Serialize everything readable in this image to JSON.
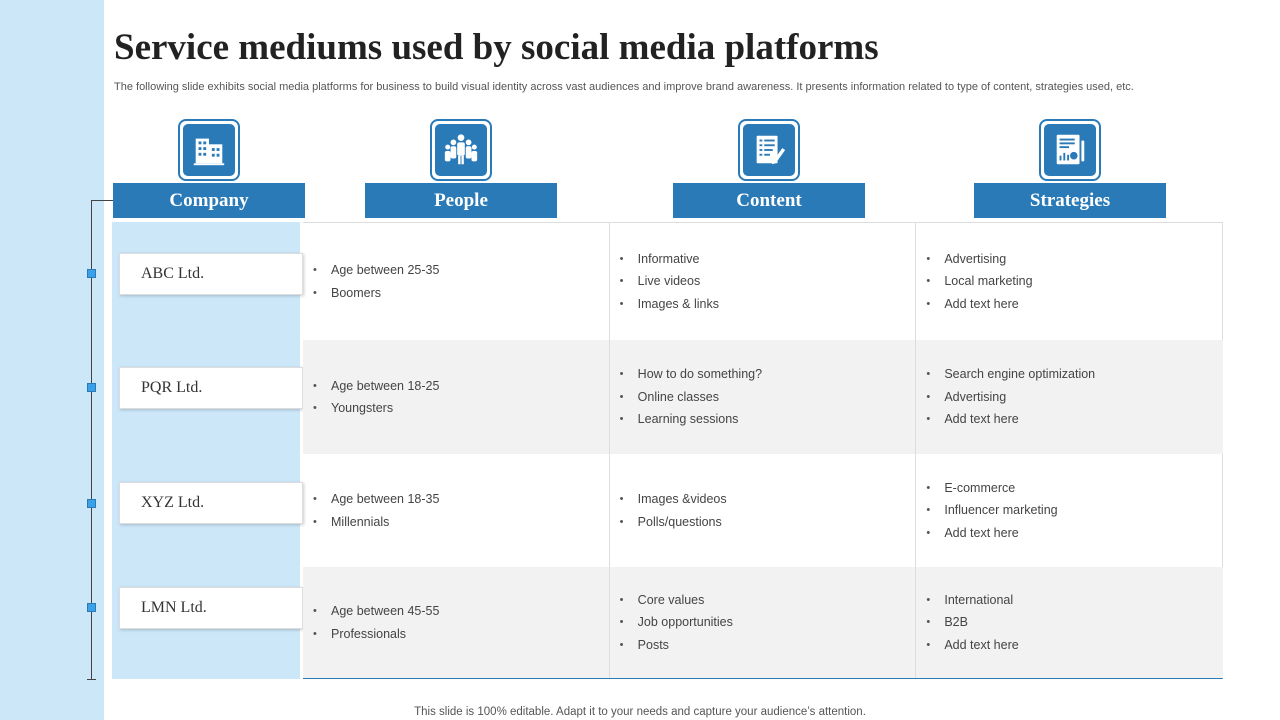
{
  "title": "Service mediums used by social media platforms",
  "subtitle": "The following slide exhibits social media platforms for business to build visual identity across vast audiences and improve brand awareness. It presents information related to type of content, strategies used, etc.",
  "headers": [
    {
      "label": "Company",
      "icon": "building-icon"
    },
    {
      "label": "People",
      "icon": "people-group-icon"
    },
    {
      "label": "Content",
      "icon": "document-pen-icon"
    },
    {
      "label": "Strategies",
      "icon": "report-chart-icon"
    }
  ],
  "rows": [
    {
      "company": "ABC Ltd.",
      "people": [
        "Age between 25-35",
        "Boomers"
      ],
      "content": [
        "Informative",
        "Live videos",
        "Images & links"
      ],
      "strategies": [
        "Advertising",
        "Local marketing",
        "Add text here"
      ]
    },
    {
      "company": "PQR Ltd.",
      "people": [
        "Age between 18-25",
        "Youngsters"
      ],
      "content": [
        "How to do something?",
        "Online classes",
        "Learning sessions"
      ],
      "strategies": [
        "Search engine optimization",
        "Advertising",
        "Add text here"
      ]
    },
    {
      "company": "XYZ Ltd.",
      "people": [
        "Age between 18-35",
        "Millennials"
      ],
      "content": [
        "Images &videos",
        "Polls/questions"
      ],
      "strategies": [
        "E-commerce",
        "Influencer  marketing",
        "Add text here"
      ]
    },
    {
      "company": "LMN Ltd.",
      "people": [
        "Age between 45-55",
        "Professionals"
      ],
      "content": [
        "Core values",
        "Job opportunities",
        "Posts"
      ],
      "strategies": [
        "International",
        "B2B",
        "Add text here"
      ]
    }
  ],
  "footer": "This slide is 100% editable. Adapt it to your needs and capture your audience’s attention.",
  "colors": {
    "accent": "#2a7ab8",
    "band": "#cce7f8",
    "dot": "#3aa0e8",
    "alt_row": "#f2f2f2"
  }
}
